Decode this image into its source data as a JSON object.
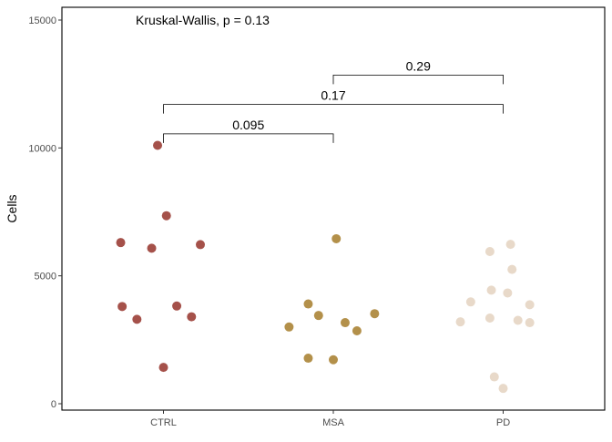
{
  "chart_data": {
    "type": "scatter",
    "title": "",
    "xlabel": "",
    "ylabel": "Cells",
    "categories": [
      "CTRL",
      "MSA",
      "PD"
    ],
    "ylim": [
      0,
      15000
    ],
    "yticks": [
      "0",
      "5000",
      "10000",
      "15000"
    ],
    "grid": false,
    "legend": "none",
    "series": [
      {
        "group": "CTRL",
        "color": "#A5514A",
        "points": [
          {
            "jitter": -0.04,
            "y": 10100
          },
          {
            "jitter": 0.02,
            "y": 7350
          },
          {
            "jitter": -0.29,
            "y": 6300
          },
          {
            "jitter": -0.08,
            "y": 6080
          },
          {
            "jitter": 0.25,
            "y": 6220
          },
          {
            "jitter": -0.28,
            "y": 3800
          },
          {
            "jitter": 0.09,
            "y": 3820
          },
          {
            "jitter": -0.18,
            "y": 3300
          },
          {
            "jitter": 0.19,
            "y": 3400
          },
          {
            "jitter": 0.0,
            "y": 1420
          }
        ]
      },
      {
        "group": "MSA",
        "color": "#B3904A",
        "points": [
          {
            "jitter": 0.02,
            "y": 6450
          },
          {
            "jitter": -0.17,
            "y": 3900
          },
          {
            "jitter": -0.1,
            "y": 3450
          },
          {
            "jitter": 0.28,
            "y": 3520
          },
          {
            "jitter": -0.3,
            "y": 3000
          },
          {
            "jitter": 0.08,
            "y": 3170
          },
          {
            "jitter": 0.16,
            "y": 2850
          },
          {
            "jitter": -0.17,
            "y": 1780
          },
          {
            "jitter": 0.0,
            "y": 1720
          }
        ]
      },
      {
        "group": "PD",
        "color": "#E8D9C9",
        "points": [
          {
            "jitter": 0.05,
            "y": 6230
          },
          {
            "jitter": -0.09,
            "y": 5950
          },
          {
            "jitter": 0.06,
            "y": 5250
          },
          {
            "jitter": -0.22,
            "y": 3980
          },
          {
            "jitter": -0.08,
            "y": 4440
          },
          {
            "jitter": 0.03,
            "y": 4330
          },
          {
            "jitter": 0.18,
            "y": 3870
          },
          {
            "jitter": -0.09,
            "y": 3350
          },
          {
            "jitter": -0.29,
            "y": 3200
          },
          {
            "jitter": 0.1,
            "y": 3260
          },
          {
            "jitter": 0.18,
            "y": 3170
          },
          {
            "jitter": -0.06,
            "y": 1050
          },
          {
            "jitter": 0.0,
            "y": 600
          }
        ]
      }
    ],
    "annotation": "Kruskal-Wallis, p = 0.13",
    "comparisons": [
      {
        "from": "CTRL",
        "to": "MSA",
        "label": "0.095",
        "y": 10550
      },
      {
        "from": "CTRL",
        "to": "PD",
        "label": "0.17",
        "y": 11700
      },
      {
        "from": "MSA",
        "to": "PD",
        "label": "0.29",
        "y": 12850
      }
    ]
  }
}
